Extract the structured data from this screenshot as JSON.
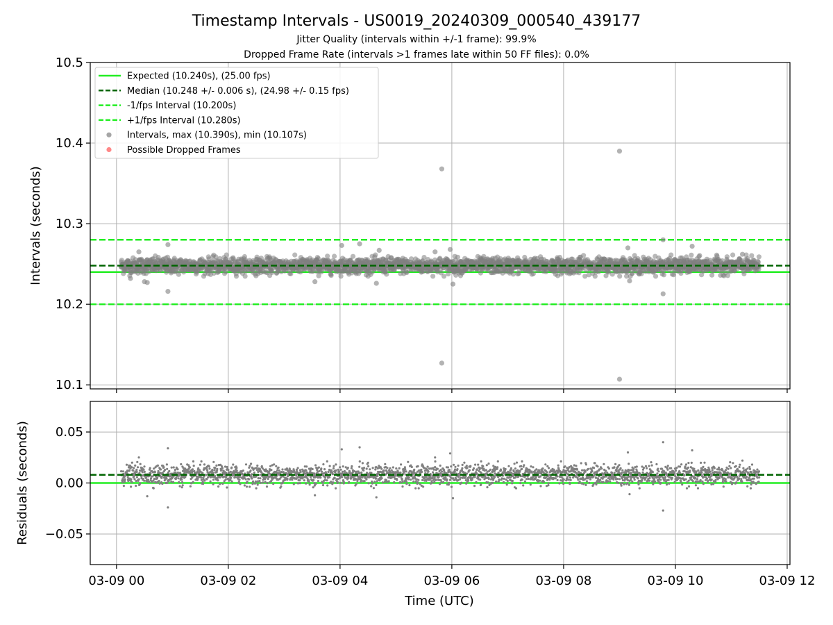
{
  "title": "Timestamp Intervals - US0019_20240309_000540_439177",
  "subtitle1": "Jitter Quality (intervals within +/-1 frame): 99.9%",
  "subtitle2": "Dropped Frame Rate (intervals >1 frames late within 50 FF files): 0.0%",
  "colors": {
    "expected": "#22ee22",
    "median": "#006400",
    "points": "#808080",
    "dropped": "#ff5555",
    "grid": "#b0b0b0"
  },
  "chart_data": [
    {
      "type": "scatter",
      "ylabel": "Intervals (seconds)",
      "ylim": [
        10.095,
        10.5
      ],
      "yticks": [
        "10.1",
        "10.2",
        "10.3",
        "10.4",
        "10.5"
      ],
      "ytick_values": [
        10.1,
        10.2,
        10.3,
        10.4,
        10.5
      ],
      "xlim_hours": [
        -0.47,
        12.05
      ],
      "grid": true,
      "legend_position": "top-left",
      "reference_lines": {
        "expected": 10.24,
        "median": 10.248,
        "minus_fps": 10.2,
        "plus_fps": 10.28
      },
      "series": [
        {
          "name": "Expected (10.240s), (25.00 fps)",
          "style": "solid",
          "color_key": "expected"
        },
        {
          "name": "Median (10.248 +/- 0.006 s), (24.98 +/- 0.15 fps)",
          "style": "dashed",
          "color_key": "median"
        },
        {
          "name": "-1/fps Interval (10.200s)",
          "style": "dashed",
          "color_key": "expected"
        },
        {
          "name": "+1/fps Interval (10.280s)",
          "style": "dashed",
          "color_key": "expected"
        },
        {
          "name": "Intervals, max (10.390s), min (10.107s)",
          "style": "point",
          "color_key": "points"
        },
        {
          "name": "Possible Dropped Frames",
          "style": "point",
          "color_key": "dropped"
        }
      ],
      "band": {
        "x_start_hours": 0.08,
        "x_end_hours": 11.5,
        "center": 10.248,
        "spread": 0.006
      },
      "outliers": [
        {
          "x": 5.82,
          "y": 10.368
        },
        {
          "x": 9.0,
          "y": 10.39
        },
        {
          "x": 5.82,
          "y": 10.127
        },
        {
          "x": 9.0,
          "y": 10.107
        },
        {
          "x": 0.92,
          "y": 10.216
        },
        {
          "x": 9.78,
          "y": 10.213
        },
        {
          "x": 0.92,
          "y": 10.274
        },
        {
          "x": 4.03,
          "y": 10.273
        },
        {
          "x": 4.35,
          "y": 10.275
        },
        {
          "x": 5.97,
          "y": 10.268
        },
        {
          "x": 9.15,
          "y": 10.27
        },
        {
          "x": 10.3,
          "y": 10.272
        },
        {
          "x": 0.5,
          "y": 10.228
        },
        {
          "x": 0.55,
          "y": 10.227
        },
        {
          "x": 3.55,
          "y": 10.228
        },
        {
          "x": 4.65,
          "y": 10.226
        },
        {
          "x": 6.02,
          "y": 10.225
        },
        {
          "x": 9.18,
          "y": 10.229
        },
        {
          "x": 9.78,
          "y": 10.28
        },
        {
          "x": 0.25,
          "y": 10.232
        },
        {
          "x": 0.4,
          "y": 10.265
        },
        {
          "x": 5.7,
          "y": 10.265
        },
        {
          "x": 4.7,
          "y": 10.267
        },
        {
          "x": 11.2,
          "y": 10.262
        }
      ]
    },
    {
      "type": "scatter",
      "ylabel": "Residuals (seconds)",
      "ylim": [
        -0.08,
        0.08
      ],
      "yticks": [
        "−0.05",
        "0.00",
        "0.05"
      ],
      "ytick_values": [
        -0.05,
        0.0,
        0.05
      ],
      "xlabel": "Time (UTC)",
      "xlim_hours": [
        -0.47,
        12.05
      ],
      "xticks": [
        "03-09 00",
        "03-09 02",
        "03-09 04",
        "03-09 06",
        "03-09 08",
        "03-09 10",
        "03-09 12"
      ],
      "xtick_values": [
        0,
        2,
        4,
        6,
        8,
        10,
        12
      ],
      "grid": true,
      "reference_lines": {
        "expected": 0.0,
        "median": 0.008
      },
      "band": {
        "x_start_hours": 0.08,
        "x_end_hours": 11.5,
        "center": 0.008,
        "spread": 0.006
      },
      "outliers": [
        {
          "x": 0.92,
          "y": 0.034
        },
        {
          "x": 0.92,
          "y": -0.024
        },
        {
          "x": 4.35,
          "y": 0.035
        },
        {
          "x": 4.03,
          "y": 0.033
        },
        {
          "x": 5.97,
          "y": 0.029
        },
        {
          "x": 6.02,
          "y": -0.015
        },
        {
          "x": 9.78,
          "y": 0.04
        },
        {
          "x": 9.78,
          "y": -0.027
        },
        {
          "x": 9.15,
          "y": 0.03
        },
        {
          "x": 10.3,
          "y": 0.032
        },
        {
          "x": 0.55,
          "y": -0.013
        },
        {
          "x": 4.65,
          "y": -0.014
        },
        {
          "x": 3.55,
          "y": -0.012
        },
        {
          "x": 9.18,
          "y": -0.011
        },
        {
          "x": 0.4,
          "y": 0.025
        },
        {
          "x": 5.7,
          "y": 0.025
        },
        {
          "x": 11.2,
          "y": 0.022
        }
      ]
    }
  ]
}
